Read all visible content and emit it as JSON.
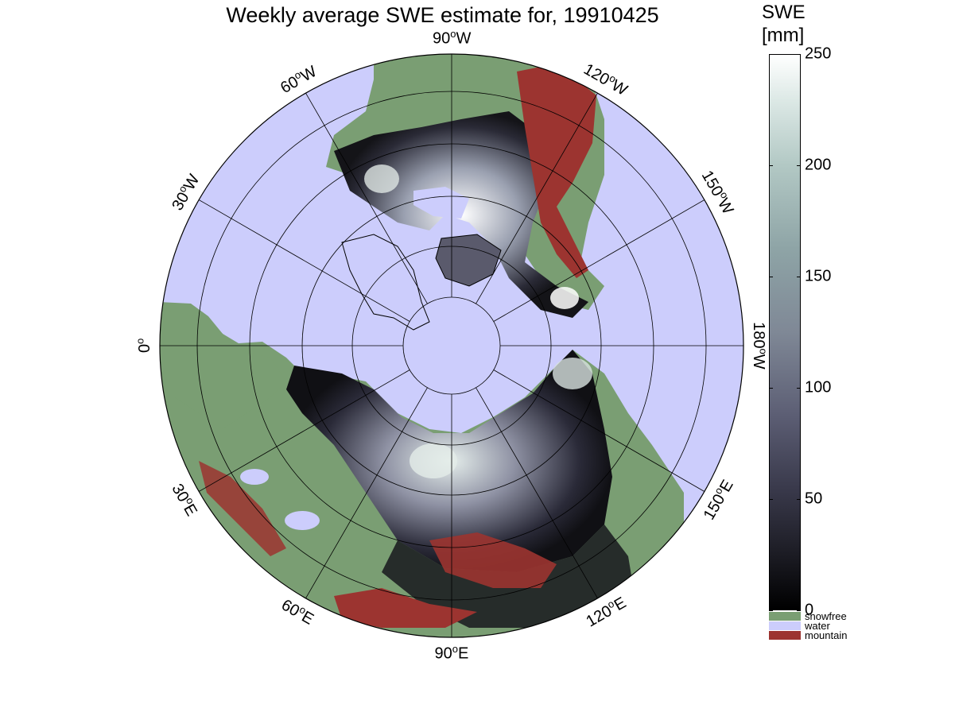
{
  "title": "Weekly average SWE estimate for, 19910425",
  "colorbar": {
    "title_line1": "SWE",
    "title_line2": "[mm]",
    "min": 0,
    "max": 250,
    "ticks": [
      "0",
      "50",
      "100",
      "150",
      "200",
      "250"
    ],
    "categories": [
      {
        "label": "snowfree",
        "color": "#7a9e73"
      },
      {
        "label": "water",
        "color": "#cccdfc"
      },
      {
        "label": "mountain",
        "color": "#9c3430"
      }
    ]
  },
  "map": {
    "projection": "north-polar-stereographic",
    "ocean_color": "#cccdfc",
    "land_color": "#7a9e73",
    "mountain_color": "#9c3430",
    "longitude_labels": [
      {
        "text": "90",
        "unit": "W",
        "lon": -90
      },
      {
        "text": "60",
        "unit": "W",
        "lon": -60
      },
      {
        "text": "30",
        "unit": "W",
        "lon": -30
      },
      {
        "text": "0",
        "unit": "",
        "lon": 0
      },
      {
        "text": "30",
        "unit": "E",
        "lon": 30
      },
      {
        "text": "60",
        "unit": "E",
        "lon": 60
      },
      {
        "text": "90",
        "unit": "E",
        "lon": 90
      },
      {
        "text": "120",
        "unit": "E",
        "lon": 120
      },
      {
        "text": "150",
        "unit": "E",
        "lon": 150
      },
      {
        "text": "180",
        "unit": "W",
        "lon": 180
      },
      {
        "text": "150",
        "unit": "W",
        "lon": -150
      },
      {
        "text": "120",
        "unit": "W",
        "lon": -120
      }
    ]
  }
}
